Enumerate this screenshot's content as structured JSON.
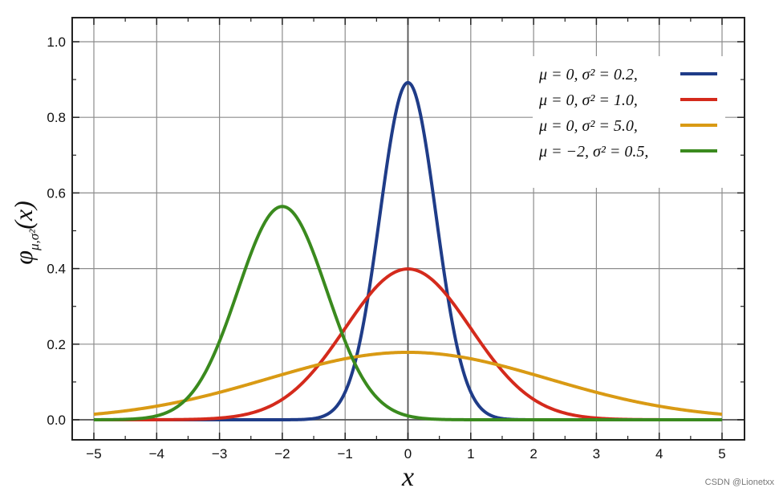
{
  "chart_data": {
    "type": "line",
    "xlabel": "x",
    "ylabel": "φμ,σ²(x)",
    "ylabel_main": "φ",
    "ylabel_sub": "μ,σ²",
    "ylabel_arg": "(x)",
    "xlim": [
      -5,
      5
    ],
    "ylim": [
      0.0,
      1.0
    ],
    "xticks": [
      -5,
      -4,
      -3,
      -2,
      -1,
      0,
      1,
      2,
      3,
      4,
      5
    ],
    "xtick_labels": [
      "−5",
      "−4",
      "−3",
      "−2",
      "−1",
      "0",
      "1",
      "2",
      "3",
      "4",
      "5"
    ],
    "yticks": [
      0.0,
      0.2,
      0.4,
      0.6,
      0.8,
      1.0
    ],
    "ytick_labels": [
      "0.0",
      "0.2",
      "0.4",
      "0.6",
      "0.8",
      "1.0"
    ],
    "grid": true,
    "legend_position": "top-right",
    "series": [
      {
        "name": "μ = 0,    σ² = 0.2,",
        "mu": 0,
        "variance": 0.2,
        "color": "#1f3c88"
      },
      {
        "name": "μ = 0,    σ² = 1.0,",
        "mu": 0,
        "variance": 1.0,
        "color": "#d42a1c"
      },
      {
        "name": "μ = 0,    σ² = 5.0,",
        "mu": 0,
        "variance": 5.0,
        "color": "#d99a14"
      },
      {
        "name": "μ = −2,  σ² = 0.5,",
        "mu": -2,
        "variance": 0.5,
        "color": "#3a8a1e"
      }
    ]
  },
  "watermark": "CSDN @Lionetxx"
}
